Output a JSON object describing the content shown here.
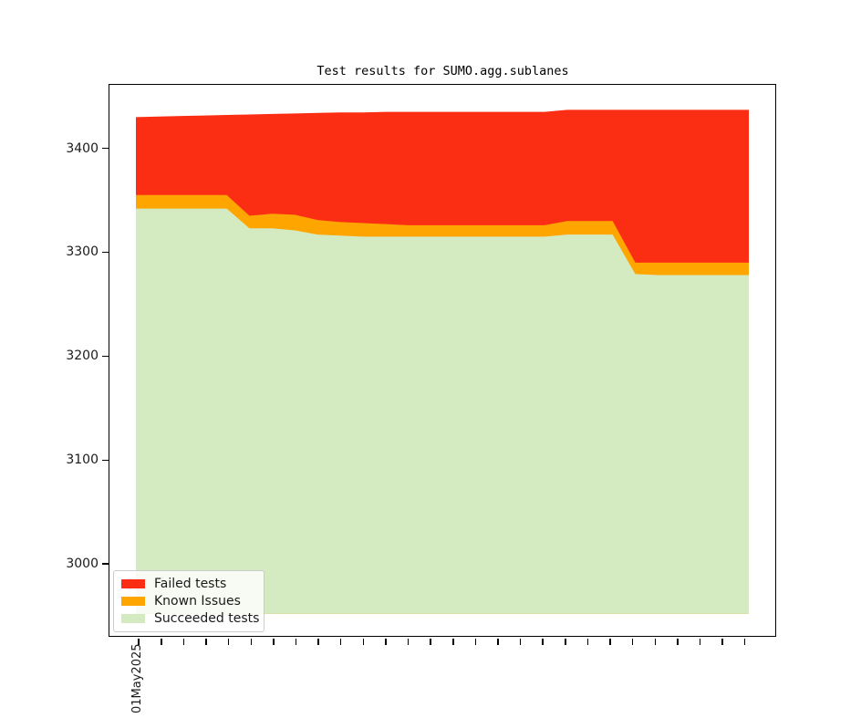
{
  "title": "Test results for SUMO.agg.sublanes",
  "legend": {
    "items": [
      {
        "label": "Failed tests",
        "color": "#fb2e14",
        "swatch": "failed-swatch"
      },
      {
        "label": "Known Issues",
        "color": "#ffa500",
        "swatch": "known-issues-swatch"
      },
      {
        "label": "Succeeded tests",
        "color": "#d4eac0",
        "swatch": "succeeded-swatch"
      }
    ]
  },
  "axes": {
    "y_tick_labels": [
      "3400",
      "3300",
      "3200",
      "3100",
      "3000"
    ],
    "x_first_tick_label": "01May2025",
    "x_tick_count": 28
  },
  "chart_data": {
    "type": "area",
    "stacked": true,
    "title": "Test results for SUMO.agg.sublanes",
    "xlabel": "",
    "ylabel": "",
    "x_days": 28,
    "x_first_tick_label": "01May2025",
    "x_tick_count": 28,
    "ylim": [
      2930,
      3461
    ],
    "y_ticks": [
      3000,
      3100,
      3200,
      3300,
      3400
    ],
    "baseline": 2952,
    "grid": false,
    "legend_position": "lower-left",
    "note": "series tops are cumulative stack boundaries read off the y-axis; baseline is the flat bottom edge of the green area",
    "series": [
      {
        "name": "Failed tests",
        "color": "#fb2e14",
        "top": [
          3430,
          3430.5,
          3431,
          3431.5,
          3432,
          3432.5,
          3433,
          3433.5,
          3434,
          3434.5,
          3434.5,
          3435,
          3435,
          3435,
          3435,
          3435,
          3435,
          3435,
          3435,
          3437,
          3437,
          3437,
          3437,
          3437,
          3437,
          3437,
          3437,
          3437
        ]
      },
      {
        "name": "Known Issues",
        "color": "#ffa500",
        "top": [
          3355,
          3355,
          3355,
          3355,
          3355,
          3335,
          3337,
          3336,
          3331,
          3329,
          3328,
          3327,
          3326,
          3326,
          3326,
          3326,
          3326,
          3326,
          3326,
          3330,
          3330,
          3330,
          3290,
          3290,
          3290,
          3290,
          3290,
          3290
        ]
      },
      {
        "name": "Succeeded tests",
        "color": "#d4eac0",
        "top": [
          3342,
          3342,
          3342,
          3342,
          3342,
          3323,
          3323,
          3321,
          3317,
          3316,
          3315,
          3315,
          3315,
          3315,
          3315,
          3315,
          3315,
          3315,
          3315,
          3317,
          3317,
          3317,
          3279,
          3278,
          3278,
          3278,
          3278,
          3278
        ]
      }
    ]
  }
}
